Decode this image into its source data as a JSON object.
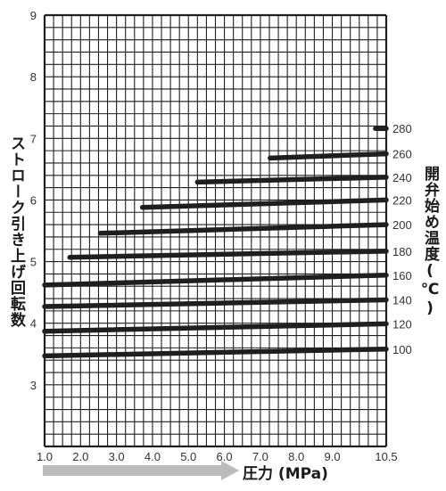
{
  "chart_data": {
    "type": "line",
    "title": "",
    "xlabel": "圧力 (MPa)",
    "ylabel": "ストローク引き上げ回転数",
    "y2label": "開弁始め温度(℃)",
    "xlim": [
      1.0,
      10.5
    ],
    "ylim": [
      2.0,
      9.0
    ],
    "x_ticks": [
      "1.0",
      "2.0",
      "3.0",
      "4.0",
      "5.0",
      "6.0",
      "7.0",
      "8.0",
      "9.0",
      "10.5"
    ],
    "x_tick_values": [
      1.0,
      2.0,
      3.0,
      4.0,
      5.0,
      6.0,
      7.0,
      8.0,
      9.0,
      10.5
    ],
    "y_ticks": [
      "3",
      "4",
      "5",
      "6",
      "7",
      "8",
      "9"
    ],
    "y_tick_values": [
      3,
      4,
      5,
      6,
      7,
      8,
      9
    ],
    "grid": true,
    "colors": {
      "line": "#1f1f1f",
      "grid": "#1f1f1f",
      "arrow": "#bcbcbc"
    },
    "series": [
      {
        "name": "280",
        "x": [
          10.2,
          10.5
        ],
        "y": [
          7.16,
          7.16
        ]
      },
      {
        "name": "260",
        "x": [
          7.27,
          10.5
        ],
        "y": [
          6.68,
          6.75
        ]
      },
      {
        "name": "240",
        "x": [
          5.25,
          10.5
        ],
        "y": [
          6.29,
          6.37
        ]
      },
      {
        "name": "220",
        "x": [
          3.72,
          10.5
        ],
        "y": [
          5.88,
          6.0
        ]
      },
      {
        "name": "200",
        "x": [
          2.55,
          10.5
        ],
        "y": [
          5.46,
          5.6
        ]
      },
      {
        "name": "180",
        "x": [
          1.7,
          10.5
        ],
        "y": [
          5.07,
          5.17
        ]
      },
      {
        "name": "160",
        "x": [
          1.0,
          10.5
        ],
        "y": [
          4.62,
          4.78
        ]
      },
      {
        "name": "140",
        "x": [
          1.0,
          10.5
        ],
        "y": [
          4.27,
          4.38
        ]
      },
      {
        "name": "120",
        "x": [
          1.0,
          10.5
        ],
        "y": [
          3.87,
          3.99
        ]
      },
      {
        "name": "100",
        "x": [
          1.0,
          10.5
        ],
        "y": [
          3.47,
          3.58
        ]
      }
    ]
  }
}
